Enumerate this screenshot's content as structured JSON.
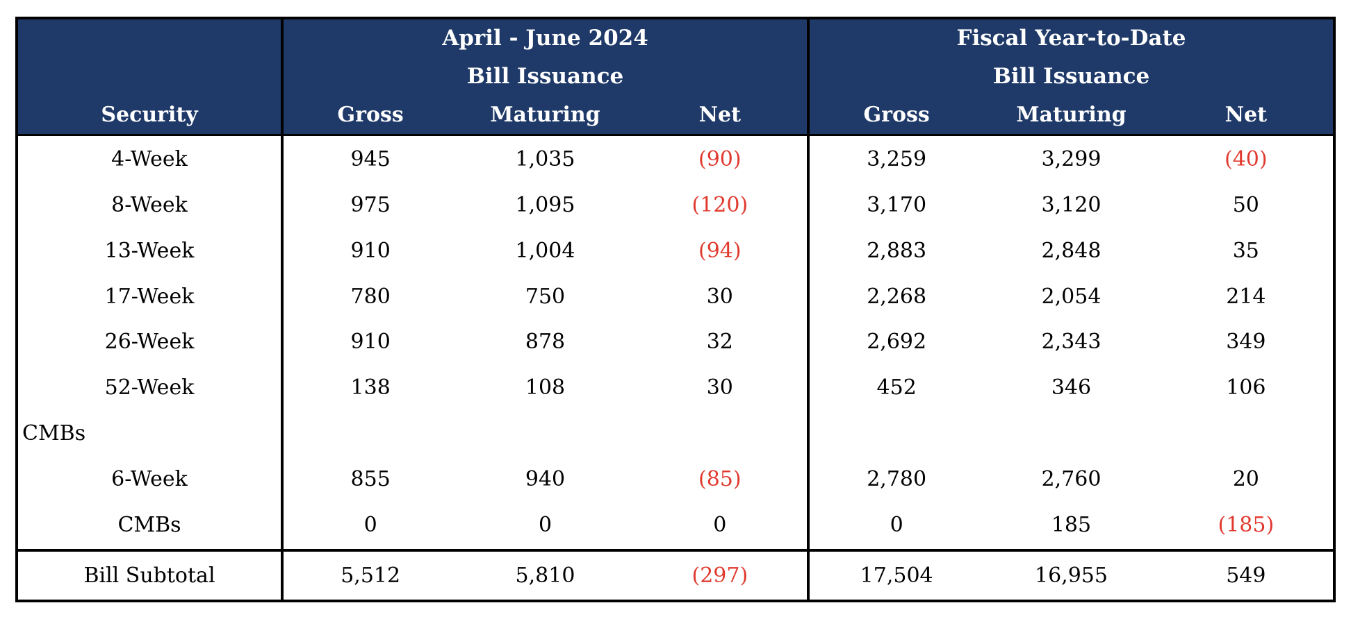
{
  "colors": {
    "header_bg": "#1f3a68",
    "header_text": "#ffffff",
    "negative_text": "#e0392e",
    "body_text": "#000000",
    "border": "#000000",
    "background": "#ffffff"
  },
  "chart_data": {
    "type": "table",
    "security_header": "Security",
    "negative_format": "parentheses-red",
    "groups": [
      {
        "title": "April - June 2024",
        "subtitle": "Bill Issuance",
        "columns": [
          "Gross",
          "Maturing",
          "Net"
        ]
      },
      {
        "title": "Fiscal Year-to-Date",
        "subtitle": "Bill Issuance",
        "columns": [
          "Gross",
          "Maturing",
          "Net"
        ]
      }
    ],
    "rows": [
      {
        "type": "data",
        "security": "4-Week",
        "values": [
          "945",
          "1,035",
          "(90)",
          "3,259",
          "3,299",
          "(40)"
        ]
      },
      {
        "type": "data",
        "security": "8-Week",
        "values": [
          "975",
          "1,095",
          "(120)",
          "3,170",
          "3,120",
          "50"
        ]
      },
      {
        "type": "data",
        "security": "13-Week",
        "values": [
          "910",
          "1,004",
          "(94)",
          "2,883",
          "2,848",
          "35"
        ]
      },
      {
        "type": "data",
        "security": "17-Week",
        "values": [
          "780",
          "750",
          "30",
          "2,268",
          "2,054",
          "214"
        ]
      },
      {
        "type": "data",
        "security": "26-Week",
        "values": [
          "910",
          "878",
          "32",
          "2,692",
          "2,343",
          "349"
        ]
      },
      {
        "type": "data",
        "security": "52-Week",
        "values": [
          "138",
          "108",
          "30",
          "452",
          "346",
          "106"
        ]
      },
      {
        "type": "section",
        "security": "CMBs",
        "values": [
          "",
          "",
          "",
          "",
          "",
          ""
        ]
      },
      {
        "type": "data",
        "security": "6-Week",
        "values": [
          "855",
          "940",
          "(85)",
          "2,780",
          "2,760",
          "20"
        ]
      },
      {
        "type": "data",
        "security": "CMBs",
        "values": [
          "0",
          "0",
          "0",
          "0",
          "185",
          "(185)"
        ]
      },
      {
        "type": "subtotal",
        "security": "Bill Subtotal",
        "values": [
          "5,512",
          "5,810",
          "(297)",
          "17,504",
          "16,955",
          "549"
        ]
      }
    ]
  }
}
